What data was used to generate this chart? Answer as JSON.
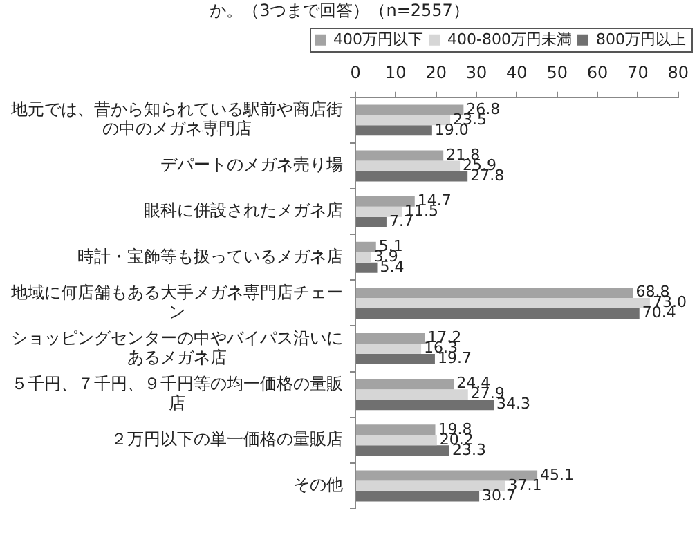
{
  "chart_data": {
    "type": "bar",
    "orientation": "horizontal",
    "title": "か。（3つまで回答）（n=2557）",
    "categories": [
      "地元では、昔から知られている駅前や商店街の中のメガネ専門店",
      "デパートのメガネ売り場",
      "眼科に併設されたメガネ店",
      "時計・宝飾等も扱っているメガネ店",
      "地域に何店舗もある大手メガネ専門店チェーン",
      "ショッピングセンターの中やバイパス沿いにあるメガネ店",
      "５千円、７千円、９千円等の均一価格の量販店",
      "２万円以下の単一価格の量販店",
      "その他"
    ],
    "series": [
      {
        "name": "400万円以下",
        "color": "#a3a3a3",
        "values": [
          26.8,
          21.8,
          14.7,
          5.1,
          68.8,
          17.2,
          24.4,
          19.8,
          45.1
        ],
        "value_labels": [
          "26.8",
          "21.8",
          "14.7",
          "5.1",
          "68.8",
          "17.2",
          "24.4",
          "19.8",
          "45.1"
        ]
      },
      {
        "name": "400-800万円未満",
        "color": "#d6d6d6",
        "values": [
          23.5,
          25.9,
          11.5,
          3.9,
          73.0,
          16.3,
          27.9,
          20.2,
          37.1
        ],
        "value_labels": [
          "23.5",
          "25.9",
          "11.5",
          "3.9",
          "73.0",
          "16.3",
          "27.9",
          "20.2",
          "37.1"
        ]
      },
      {
        "name": "800万円以上",
        "color": "#707070",
        "values": [
          19.0,
          27.8,
          7.7,
          5.4,
          70.4,
          19.7,
          34.3,
          23.3,
          30.7
        ],
        "value_labels": [
          "19.0",
          "27.8",
          "7.7",
          "5.4",
          "70.4",
          "19.7",
          "34.3",
          "23.3",
          "30.7"
        ]
      }
    ],
    "xlim": [
      0,
      80
    ],
    "xticks": [
      0,
      10,
      20,
      30,
      40,
      50,
      60,
      70,
      80
    ],
    "legend": "top"
  }
}
